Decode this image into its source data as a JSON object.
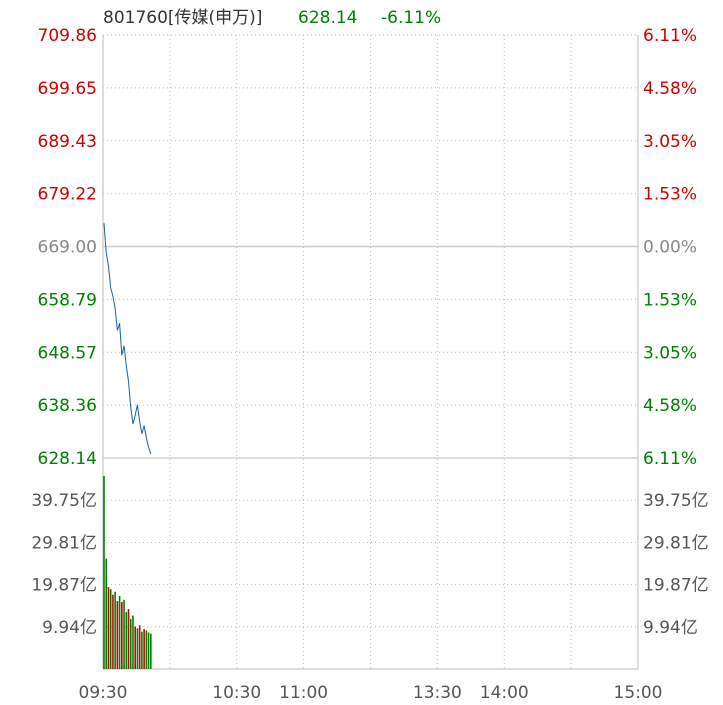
{
  "header": {
    "code_name": "801760[传媒(申万)]",
    "price": "628.14",
    "change": "-6.11%"
  },
  "colors": {
    "up": "#cc0000",
    "down": "#008000",
    "neutral": "#888888",
    "price_line": "#1f5fa0",
    "grid": "#bbbbbb"
  },
  "chart_data": {
    "type": "line",
    "title": "801760[传媒(申万)]",
    "prev_close": 669.0,
    "price_ticks": [
      "709.86",
      "699.65",
      "689.43",
      "679.22",
      "669.00",
      "658.79",
      "648.57",
      "638.36",
      "628.14"
    ],
    "pct_ticks": [
      "6.11%",
      "4.58%",
      "3.05%",
      "1.53%",
      "0.00%",
      "1.53%",
      "3.05%",
      "4.58%",
      "6.11%"
    ],
    "volume_ticks": [
      "39.75亿",
      "29.81亿",
      "19.87亿",
      "9.94亿"
    ],
    "x_ticks": [
      "09:30",
      "10:30",
      "11:00",
      "13:30",
      "14:00",
      "15:00"
    ],
    "ylim": [
      628.14,
      709.86
    ],
    "volume_ylim": [
      0,
      49.7
    ],
    "x_minutes": [
      0,
      1,
      2,
      3,
      4,
      5,
      6,
      7,
      8,
      9,
      10,
      11,
      12,
      13,
      14,
      15,
      16,
      17,
      18,
      19,
      20,
      21
    ],
    "series": [
      {
        "values": [
          673.5,
          667.8,
          665.2,
          661.0,
          659.4,
          657.1,
          652.8,
          654.2,
          648.0,
          649.8,
          646.0,
          642.9,
          637.8,
          634.7,
          636.4,
          638.4,
          635.1,
          632.8,
          634.4,
          632.0,
          630.2,
          628.9
        ]
      }
    ],
    "volume": [
      45.5,
      26.0,
      19.3,
      18.8,
      17.5,
      18.2,
      16.0,
      17.2,
      15.8,
      16.3,
      13.4,
      14.1,
      11.8,
      12.6,
      10.0,
      9.6,
      10.3,
      8.8,
      9.4,
      9.1,
      8.6,
      8.3
    ],
    "volume_up": [
      false,
      false,
      true,
      false,
      true,
      false,
      true,
      false,
      true,
      false,
      false,
      true,
      false,
      false,
      true,
      false,
      true,
      false,
      true,
      false,
      false,
      false
    ],
    "grid": true
  }
}
